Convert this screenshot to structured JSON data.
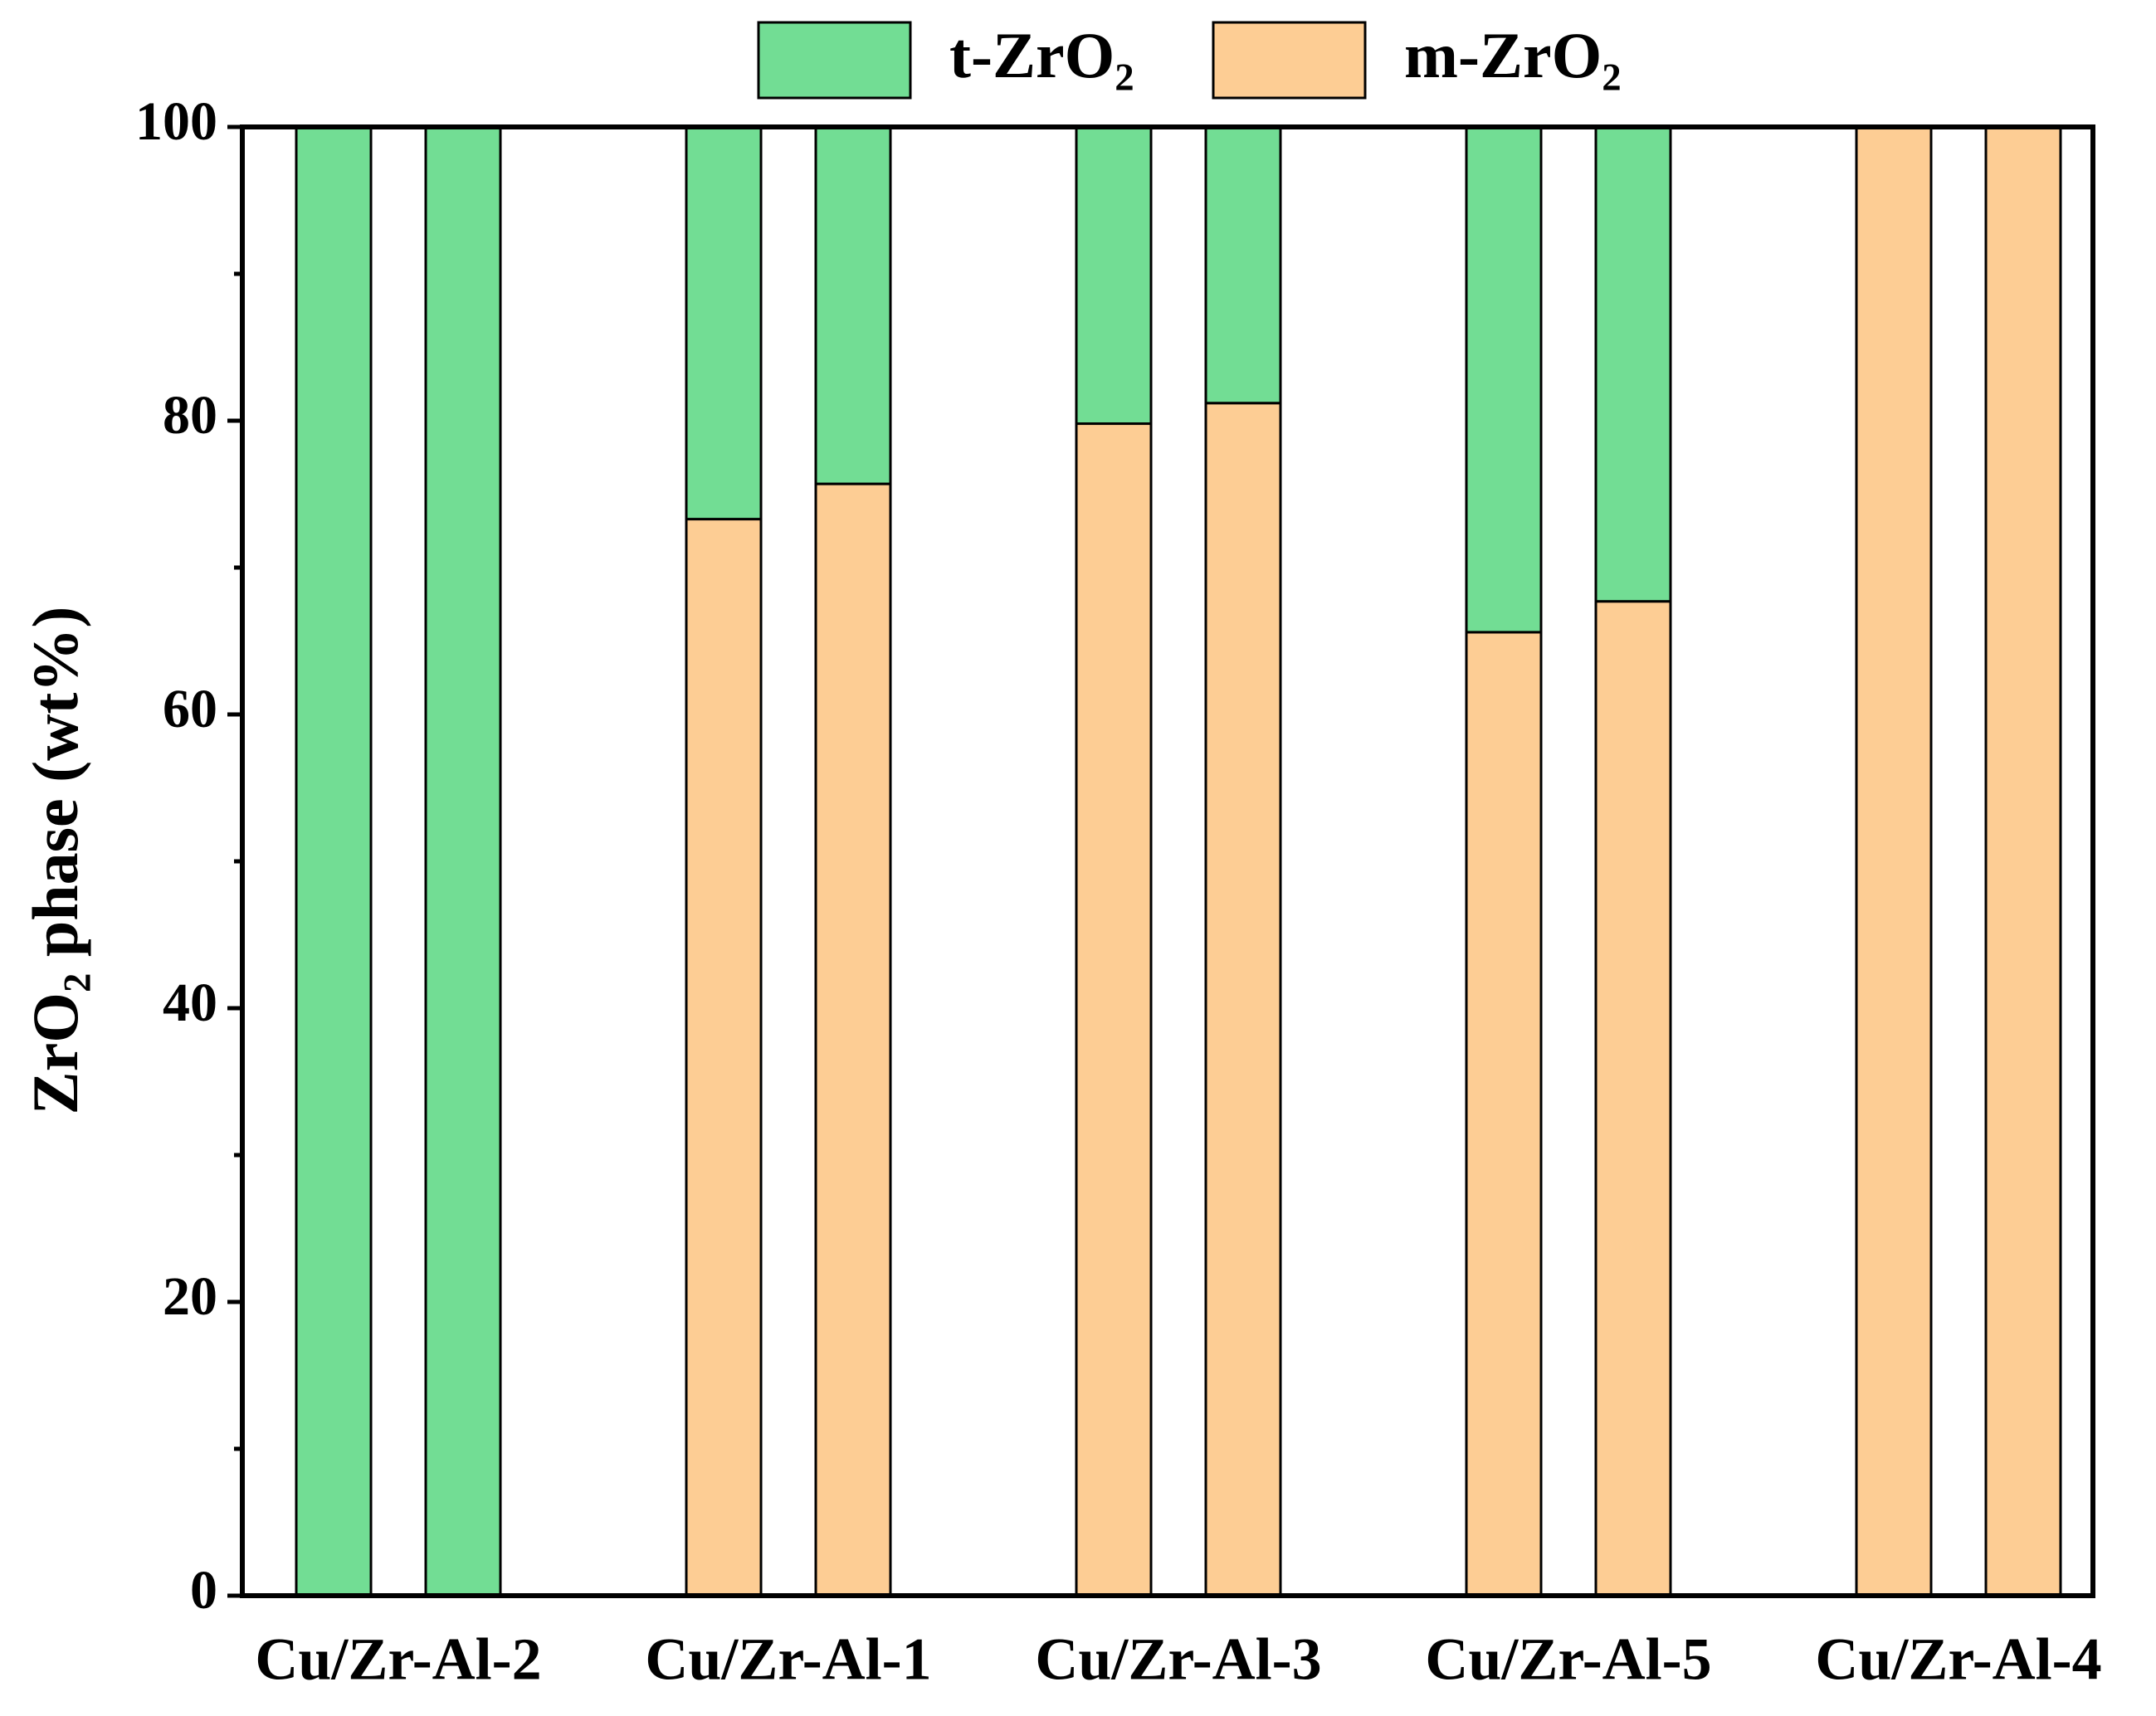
{
  "chart_data": {
    "type": "stacked-bar",
    "ylabel": "ZrO₂ phase (wt%)",
    "categories": [
      "Cu/Zr-Al-2",
      null,
      "Cu/Zr-Al-1",
      null,
      "Cu/Zr-Al-3",
      null,
      "Cu/Zr-Al-5",
      null,
      "Cu/Zr-Al-4",
      null
    ],
    "series": [
      {
        "name": "t-ZrO₂",
        "color": "#72dd94",
        "values": [
          100,
          100,
          26.7,
          24.3,
          20.2,
          18.8,
          34.4,
          32.3,
          0,
          0
        ]
      },
      {
        "name": "m-ZrO₂",
        "color": "#fdcd94",
        "values": [
          0,
          0,
          73.3,
          75.7,
          79.8,
          81.2,
          65.6,
          67.7,
          100,
          100
        ]
      }
    ],
    "stack_order": [
      "m-ZrO₂",
      "t-ZrO₂"
    ],
    "ylim": [
      0,
      100
    ],
    "yticks": [
      0,
      20,
      40,
      60,
      80,
      100
    ],
    "yminorticks": [
      10,
      30,
      50,
      70,
      90
    ],
    "legend": "top"
  }
}
